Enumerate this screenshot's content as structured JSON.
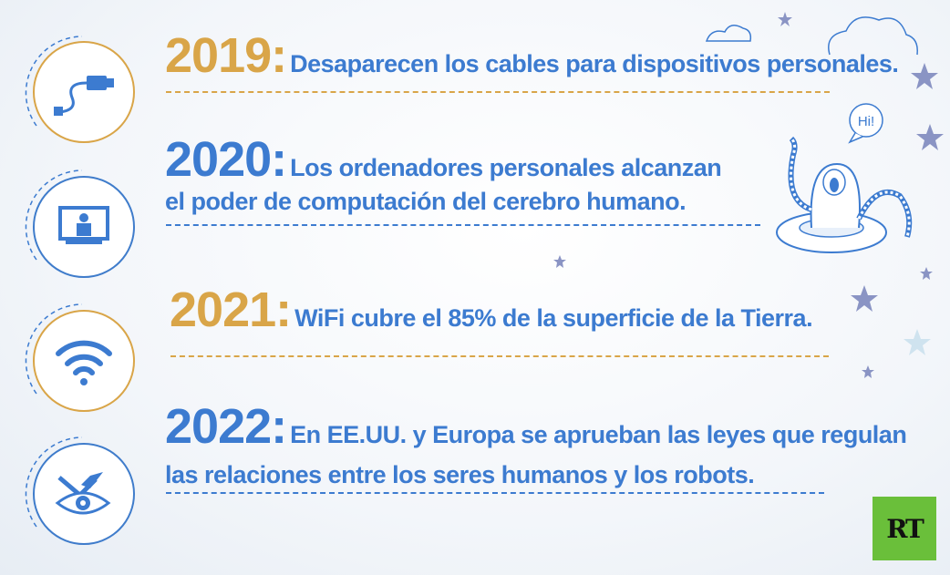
{
  "entries": [
    {
      "year": "2019:",
      "line1": "Desaparecen los cables para dispositivos personales.",
      "line2": "",
      "color": "#d9a548",
      "icon": "usb-cable-icon"
    },
    {
      "year": "2020:",
      "line1": "Los ordenadores personales alcanzan",
      "line2": "el poder de computación del cerebro humano.",
      "color": "#3c7bd0",
      "icon": "monitor-person-icon"
    },
    {
      "year": "2021:",
      "line1": "WiFi cubre el 85% de la superficie de la Tierra.",
      "line2": "",
      "color": "#d9a548",
      "icon": "wifi-icon"
    },
    {
      "year": "2022:",
      "line1": "En EE.UU. y Europa se aprueban las leyes que regulan",
      "line2": "las relaciones entre los seres humanos y los robots.",
      "color": "#3c7bd0",
      "icon": "eye-tools-icon"
    }
  ],
  "robot": {
    "speech": "Hi!",
    "icon": "robot-octopus-icon"
  },
  "logo": {
    "text": "RT",
    "color": "#6abf3a"
  }
}
